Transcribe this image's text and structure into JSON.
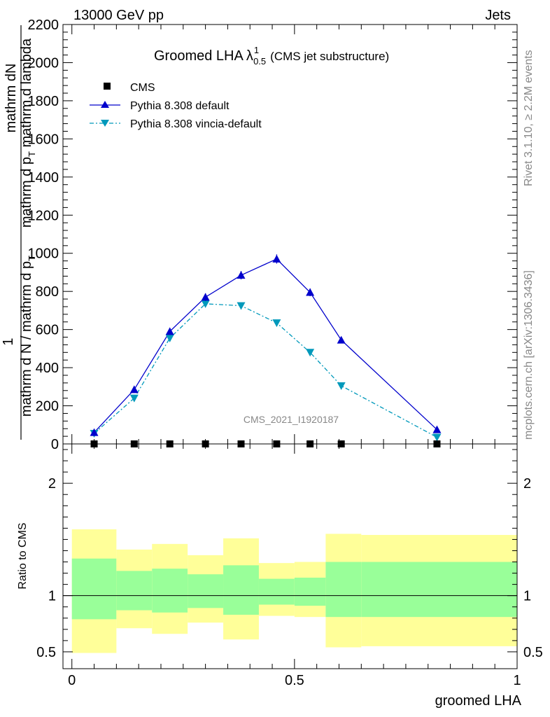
{
  "header": {
    "left": "13000 GeV pp",
    "right": "Jets"
  },
  "title": {
    "main": "Groomed LHA",
    "lambda": "λ",
    "sup": "1",
    "sub": "0.5",
    "note": "(CMS jet substructure)"
  },
  "side_text": {
    "rivet": "Rivet 3.1.10, ≥ 2.2M events",
    "mcplots": "mcplots.cern.ch [arXiv:1306.3436]"
  },
  "watermark": "CMS_2021_I1920187",
  "ylabel": {
    "numerator_1": "mathrm d",
    "numerator_2": "N",
    "denominator_1": "mathrm d p",
    "denominator_sub": "T",
    "denominator_2": " mathrm d lambda",
    "one": "1",
    "left_den": "mathrm d N / mathrm d p",
    "left_den_sub": "T"
  },
  "ratio_ylabel": "Ratio to CMS",
  "xlabel": "groomed LHA",
  "colors": {
    "pythia_default": "#0000cc",
    "pythia_vincia": "#0099bb",
    "band_inner": "#99ff99",
    "band_outer": "#ffff99"
  },
  "chart_data": [
    {
      "type": "line",
      "panel": "main",
      "x": [
        0.05,
        0.14,
        0.22,
        0.3,
        0.38,
        0.46,
        0.535,
        0.605,
        0.82
      ],
      "xlim": [
        -0.02,
        1.0
      ],
      "ylim": [
        0,
        2200
      ],
      "yticks": [
        0,
        200,
        400,
        600,
        800,
        1000,
        1200,
        1400,
        1600,
        1800,
        2000,
        2200
      ],
      "legend_position": "top-left",
      "series": [
        {
          "name": "CMS",
          "marker": "square",
          "values": [
            0,
            0,
            0,
            0,
            0,
            0,
            0,
            0,
            0
          ]
        },
        {
          "name": "Pythia 8.308 default",
          "marker": "triangle-up",
          "values": [
            60,
            285,
            590,
            770,
            885,
            970,
            795,
            545,
            75
          ],
          "errors": [
            8,
            12,
            18,
            20,
            22,
            24,
            20,
            16,
            6
          ]
        },
        {
          "name": "Pythia 8.308 vincia-default",
          "marker": "triangle-down",
          "values": [
            55,
            240,
            555,
            735,
            725,
            635,
            480,
            305,
            35
          ]
        }
      ]
    },
    {
      "type": "area",
      "panel": "ratio",
      "xlim": [
        -0.02,
        1.0
      ],
      "ylim": [
        0.35,
        2.35
      ],
      "yticks": [
        0.5,
        1,
        2
      ],
      "xticks": [
        0,
        0.5,
        1
      ],
      "reference": 1,
      "bins": [
        {
          "x0": 0.0,
          "x1": 0.1,
          "inner": [
            0.79,
            1.33
          ],
          "outer": [
            0.49,
            1.59
          ]
        },
        {
          "x0": 0.1,
          "x1": 0.18,
          "inner": [
            0.87,
            1.22
          ],
          "outer": [
            0.71,
            1.41
          ]
        },
        {
          "x0": 0.18,
          "x1": 0.26,
          "inner": [
            0.85,
            1.24
          ],
          "outer": [
            0.66,
            1.46
          ]
        },
        {
          "x0": 0.26,
          "x1": 0.34,
          "inner": [
            0.89,
            1.19
          ],
          "outer": [
            0.76,
            1.36
          ]
        },
        {
          "x0": 0.34,
          "x1": 0.42,
          "inner": [
            0.83,
            1.27
          ],
          "outer": [
            0.61,
            1.51
          ]
        },
        {
          "x0": 0.42,
          "x1": 0.5,
          "inner": [
            0.92,
            1.15
          ],
          "outer": [
            0.82,
            1.29
          ]
        },
        {
          "x0": 0.5,
          "x1": 0.57,
          "inner": [
            0.91,
            1.16
          ],
          "outer": [
            0.81,
            1.3
          ]
        },
        {
          "x0": 0.57,
          "x1": 0.65,
          "inner": [
            0.81,
            1.3
          ],
          "outer": [
            0.54,
            1.55
          ]
        },
        {
          "x0": 0.65,
          "x1": 1.0,
          "inner": [
            0.81,
            1.3
          ],
          "outer": [
            0.55,
            1.54
          ]
        }
      ]
    }
  ]
}
